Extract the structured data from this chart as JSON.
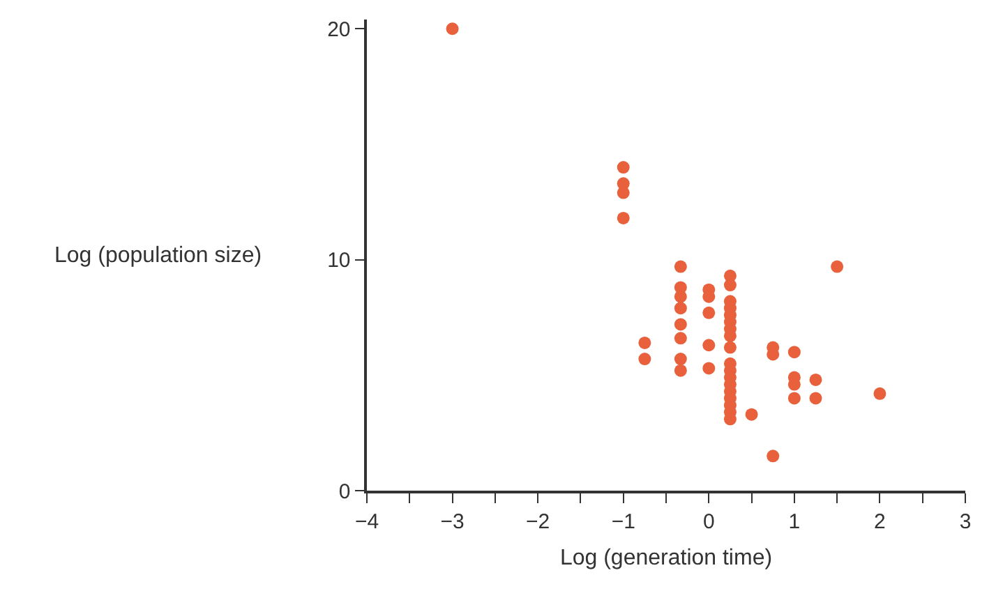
{
  "chart_data": {
    "type": "scatter",
    "xlabel": "Log (generation time)",
    "ylabel": "Log (population size)",
    "xlim": [
      -4,
      3
    ],
    "ylim": [
      0,
      20.4
    ],
    "xticks": [
      {
        "value": -4,
        "label": "−4"
      },
      {
        "value": -3.5,
        "label": null
      },
      {
        "value": -3,
        "label": "−3"
      },
      {
        "value": -2.5,
        "label": null
      },
      {
        "value": -2,
        "label": "−2"
      },
      {
        "value": -1.5,
        "label": null
      },
      {
        "value": -1,
        "label": "−1"
      },
      {
        "value": -0.5,
        "label": null
      },
      0,
      {
        "value": 0.5,
        "label": null
      },
      1,
      {
        "value": 1.5,
        "label": null
      },
      2,
      {
        "value": 2.5,
        "label": null
      },
      3
    ],
    "yticks": [
      0,
      10,
      20
    ],
    "legend": false,
    "marker": "circle",
    "series": [
      {
        "color": "#e8603c",
        "x": [
          -3,
          -1,
          -1,
          -1,
          -1,
          -0.75,
          -0.75,
          -0.33,
          -0.33,
          -0.33,
          -0.33,
          -0.33,
          -0.33,
          -0.33,
          -0.33,
          0,
          0,
          0,
          0,
          0,
          0.25,
          0.25,
          0.25,
          0.25,
          0.25,
          0.25,
          0.25,
          0.25,
          0.25,
          0.25,
          0.25,
          0.25,
          0.25,
          0.25,
          0.25,
          0.25,
          0.25,
          0.25,
          0.5,
          0.75,
          0.75,
          0.75,
          1,
          1,
          1,
          1,
          1.25,
          1.25,
          1.5,
          2
        ],
        "values": [
          20,
          14.0,
          13.3,
          12.9,
          11.8,
          6.4,
          5.7,
          9.7,
          8.8,
          8.4,
          7.9,
          7.2,
          6.6,
          5.7,
          5.2,
          8.7,
          8.4,
          7.7,
          6.3,
          5.3,
          9.3,
          8.9,
          8.2,
          7.9,
          7.6,
          7.3,
          7.0,
          6.7,
          6.2,
          5.5,
          5.2,
          4.9,
          4.6,
          4.3,
          4.0,
          3.7,
          3.4,
          3.1,
          3.3,
          6.2,
          5.9,
          1.5,
          6.0,
          4.9,
          4.6,
          4.0,
          4.8,
          4.0,
          9.7,
          4.2
        ]
      }
    ]
  }
}
